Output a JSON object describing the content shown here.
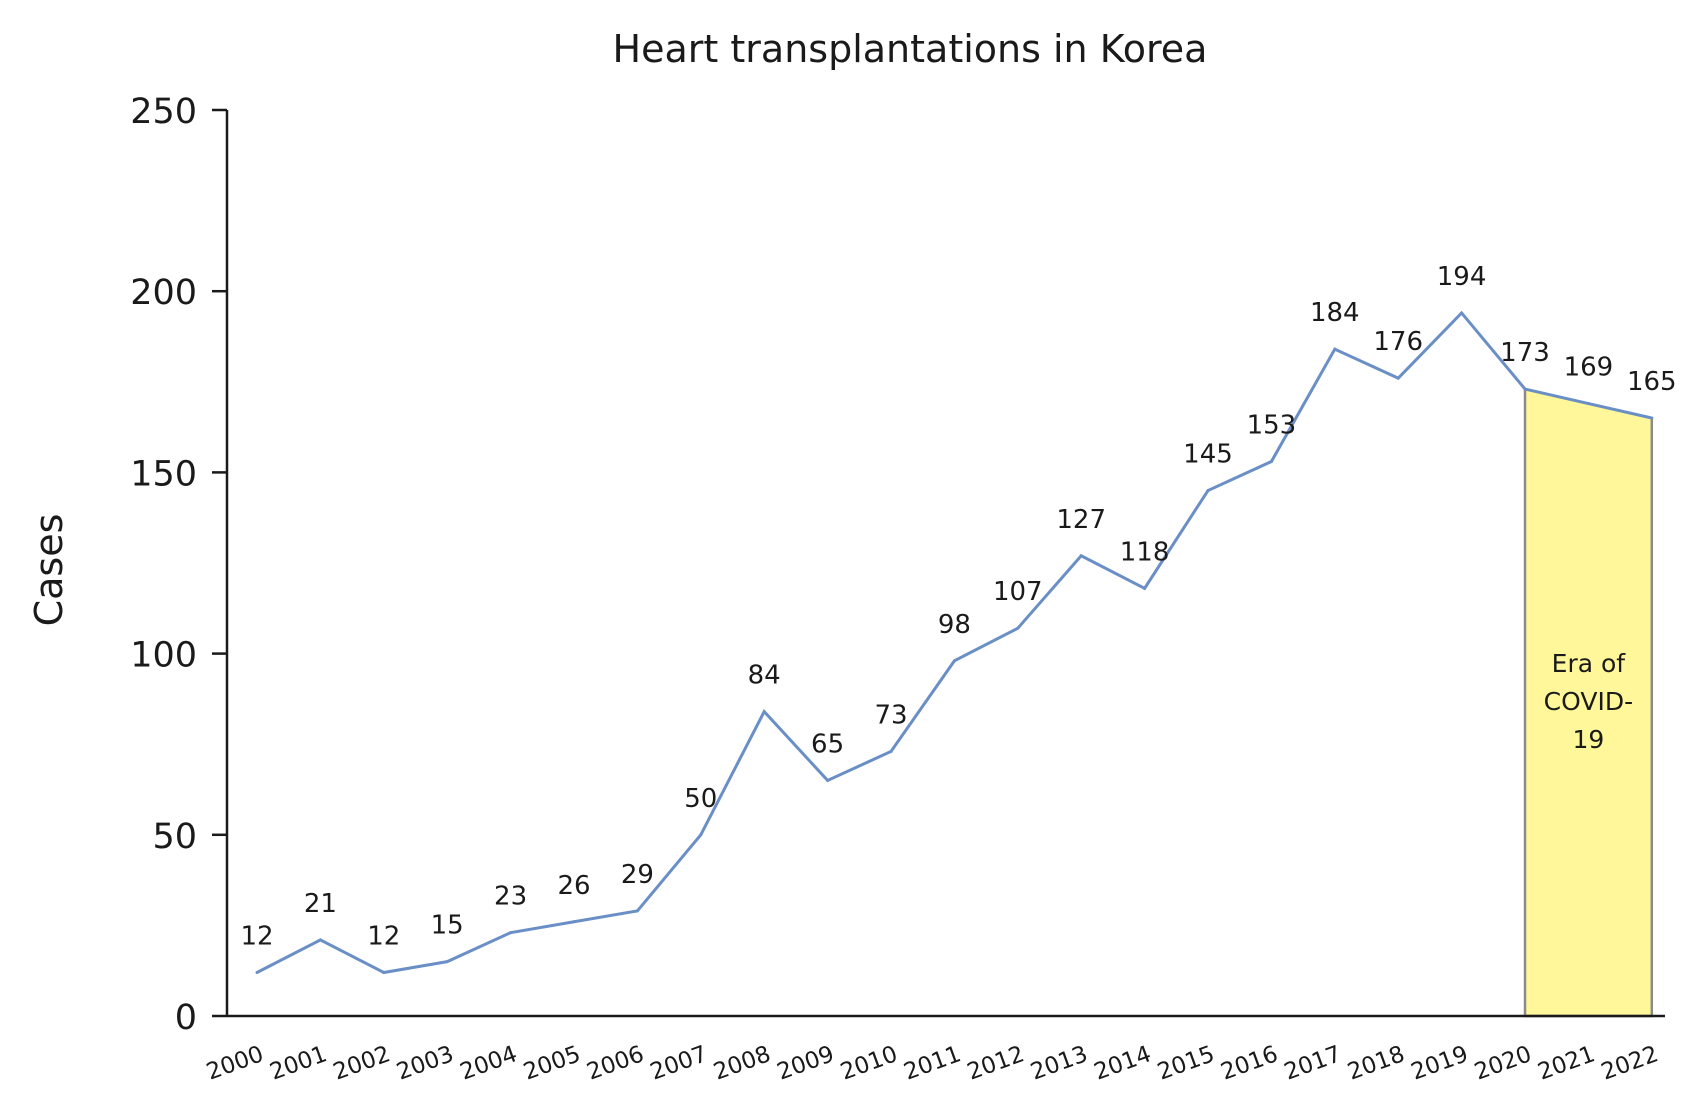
{
  "chart_data": {
    "type": "line",
    "title": "Heart transplantations in Korea",
    "ylabel": "Cases",
    "xlabel": "",
    "ylim": [
      0,
      250
    ],
    "yticks": [
      0,
      50,
      100,
      150,
      200,
      250
    ],
    "categories": [
      "2000",
      "2001",
      "2002",
      "2003",
      "2004",
      "2005",
      "2006",
      "2007",
      "2008",
      "2009",
      "2010",
      "2011",
      "2012",
      "2013",
      "2014",
      "2015",
      "2016",
      "2017",
      "2018",
      "2019",
      "2020",
      "2021",
      "2022"
    ],
    "series": [
      {
        "values": [
          12,
          21,
          12,
          15,
          23,
          26,
          29,
          50,
          84,
          65,
          73,
          98,
          107,
          127,
          118,
          145,
          153,
          184,
          176,
          194,
          173,
          169,
          165
        ]
      }
    ],
    "data_labels": [
      "12",
      "21",
      "12",
      "15",
      "23",
      "26",
      "29",
      "50",
      "84",
      "65",
      "73",
      "98",
      "107",
      "127",
      "118",
      "145",
      "153",
      "184",
      "176",
      "194",
      "173",
      "169",
      "165"
    ],
    "highlight": {
      "from": "2020",
      "to": "2022",
      "label_lines": [
        "Era of",
        "COVID-",
        "19"
      ]
    },
    "grid": false,
    "legend": "none",
    "colors": {
      "line": "#6a8fc6",
      "highlight_fill": "#fff799",
      "highlight_edge": "#8a8a8a",
      "axis": "#1a1a1a"
    }
  }
}
